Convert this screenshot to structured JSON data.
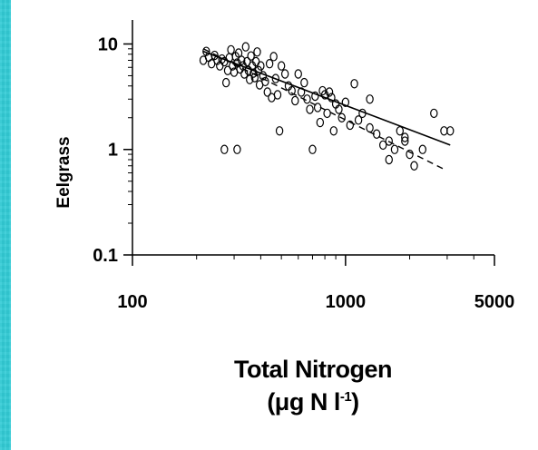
{
  "chart_data": {
    "type": "scatter",
    "title": "",
    "ylabel": "Eelgrass",
    "xlabel_line1": "Total Nitrogen",
    "xlabel_unit_main": "(μg N l",
    "xlabel_unit_sup": "-1",
    "xlabel_unit_close": ")",
    "x_scale": "log",
    "y_scale": "log",
    "xlim": [
      100,
      5000
    ],
    "ylim": [
      0.1,
      15
    ],
    "x_ticks": [
      100,
      1000,
      5000
    ],
    "x_tick_labels": [
      "100",
      "1000",
      "5000"
    ],
    "y_ticks": [
      0.1,
      1,
      10
    ],
    "y_tick_labels": [
      "0.1",
      "1",
      "10"
    ],
    "grid": false,
    "series": [
      {
        "marker": "open-circle",
        "points": [
          [
            215,
            7.0
          ],
          [
            222,
            8.5
          ],
          [
            228,
            7.5
          ],
          [
            235,
            6.5
          ],
          [
            243,
            7.8
          ],
          [
            250,
            7.0
          ],
          [
            257,
            6.2
          ],
          [
            263,
            7.2
          ],
          [
            270,
            6.8
          ],
          [
            275,
            4.3
          ],
          [
            280,
            5.6
          ],
          [
            285,
            7.4
          ],
          [
            290,
            8.8
          ],
          [
            295,
            6.2
          ],
          [
            300,
            5.4
          ],
          [
            305,
            7.6
          ],
          [
            310,
            6.6
          ],
          [
            315,
            8.2
          ],
          [
            320,
            5.8
          ],
          [
            325,
            7.0
          ],
          [
            330,
            6.2
          ],
          [
            335,
            5.2
          ],
          [
            340,
            9.4
          ],
          [
            345,
            6.8
          ],
          [
            350,
            5.6
          ],
          [
            355,
            4.6
          ],
          [
            360,
            7.7
          ],
          [
            365,
            6.2
          ],
          [
            370,
            5.3
          ],
          [
            375,
            4.8
          ],
          [
            380,
            6.8
          ],
          [
            385,
            8.4
          ],
          [
            390,
            5.6
          ],
          [
            395,
            4.1
          ],
          [
            400,
            6.2
          ],
          [
            410,
            5.0
          ],
          [
            420,
            4.4
          ],
          [
            430,
            3.5
          ],
          [
            440,
            6.5
          ],
          [
            450,
            3.1
          ],
          [
            460,
            7.6
          ],
          [
            470,
            4.7
          ],
          [
            480,
            3.3
          ],
          [
            490,
            1.5
          ],
          [
            500,
            6.2
          ],
          [
            520,
            5.2
          ],
          [
            540,
            4.0
          ],
          [
            560,
            3.6
          ],
          [
            580,
            2.9
          ],
          [
            600,
            5.2
          ],
          [
            620,
            3.5
          ],
          [
            640,
            4.3
          ],
          [
            660,
            3.0
          ],
          [
            680,
            2.4
          ],
          [
            700,
            1.0
          ],
          [
            720,
            3.2
          ],
          [
            740,
            2.5
          ],
          [
            760,
            1.8
          ],
          [
            780,
            3.6
          ],
          [
            800,
            3.3
          ],
          [
            820,
            2.2
          ],
          [
            840,
            3.5
          ],
          [
            860,
            3.1
          ],
          [
            880,
            1.5
          ],
          [
            900,
            2.7
          ],
          [
            930,
            2.4
          ],
          [
            960,
            2.0
          ],
          [
            1000,
            2.8
          ],
          [
            1050,
            1.7
          ],
          [
            1100,
            4.2
          ],
          [
            1150,
            1.9
          ],
          [
            1200,
            2.2
          ],
          [
            1300,
            1.6
          ],
          [
            1400,
            1.4
          ],
          [
            1500,
            1.1
          ],
          [
            1600,
            0.8
          ],
          [
            1700,
            1.0
          ],
          [
            1800,
            1.5
          ],
          [
            1900,
            1.2
          ],
          [
            2000,
            0.9
          ],
          [
            2100,
            0.7
          ],
          [
            2300,
            1.0
          ],
          [
            2600,
            2.2
          ],
          [
            2900,
            1.5
          ],
          [
            3100,
            1.5
          ],
          [
            270,
            1.0
          ],
          [
            310,
            1.0
          ],
          [
            1300,
            3.0
          ],
          [
            1600,
            1.2
          ],
          [
            1900,
            1.3
          ]
        ]
      }
    ],
    "fit_solid": {
      "x": [
        215,
        3100
      ],
      "y": [
        8.5,
        1.1
      ]
    },
    "fit_dashed": {
      "x": [
        215,
        2900
      ],
      "y": [
        9.0,
        0.65
      ]
    }
  }
}
